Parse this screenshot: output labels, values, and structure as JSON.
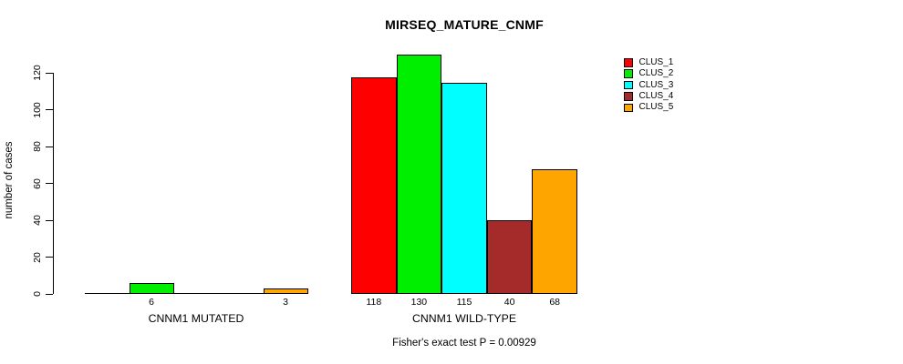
{
  "chart_data": {
    "type": "bar",
    "title": "MIRSEQ_MATURE_CNMF",
    "ylabel": "number of cases",
    "xlabel": "",
    "categories": [
      "CNNM1 MUTATED",
      "CNNM1 WILD-TYPE"
    ],
    "series": [
      {
        "name": "CLUS_1",
        "color": "#FF0000",
        "values": [
          0,
          118
        ]
      },
      {
        "name": "CLUS_2",
        "color": "#00EE00",
        "values": [
          6,
          130
        ]
      },
      {
        "name": "CLUS_3",
        "color": "#00FFFF",
        "values": [
          0,
          115
        ]
      },
      {
        "name": "CLUS_4",
        "color": "#A52A2A",
        "values": [
          0,
          40
        ]
      },
      {
        "name": "CLUS_5",
        "color": "#FFA500",
        "values": [
          3,
          68
        ]
      }
    ],
    "bar_value_labels": [
      [
        "",
        "6",
        "",
        "",
        "3"
      ],
      [
        "118",
        "130",
        "115",
        "40",
        "68"
      ]
    ],
    "yticks": [
      0,
      20,
      40,
      60,
      80,
      100,
      120
    ],
    "ylim": [
      0,
      130
    ],
    "grid": false,
    "legend_position": "top-right",
    "annotation": "Fisher's exact test P = 0.00929",
    "axis_color": "#000000",
    "background_color": "#FFFFFF"
  }
}
